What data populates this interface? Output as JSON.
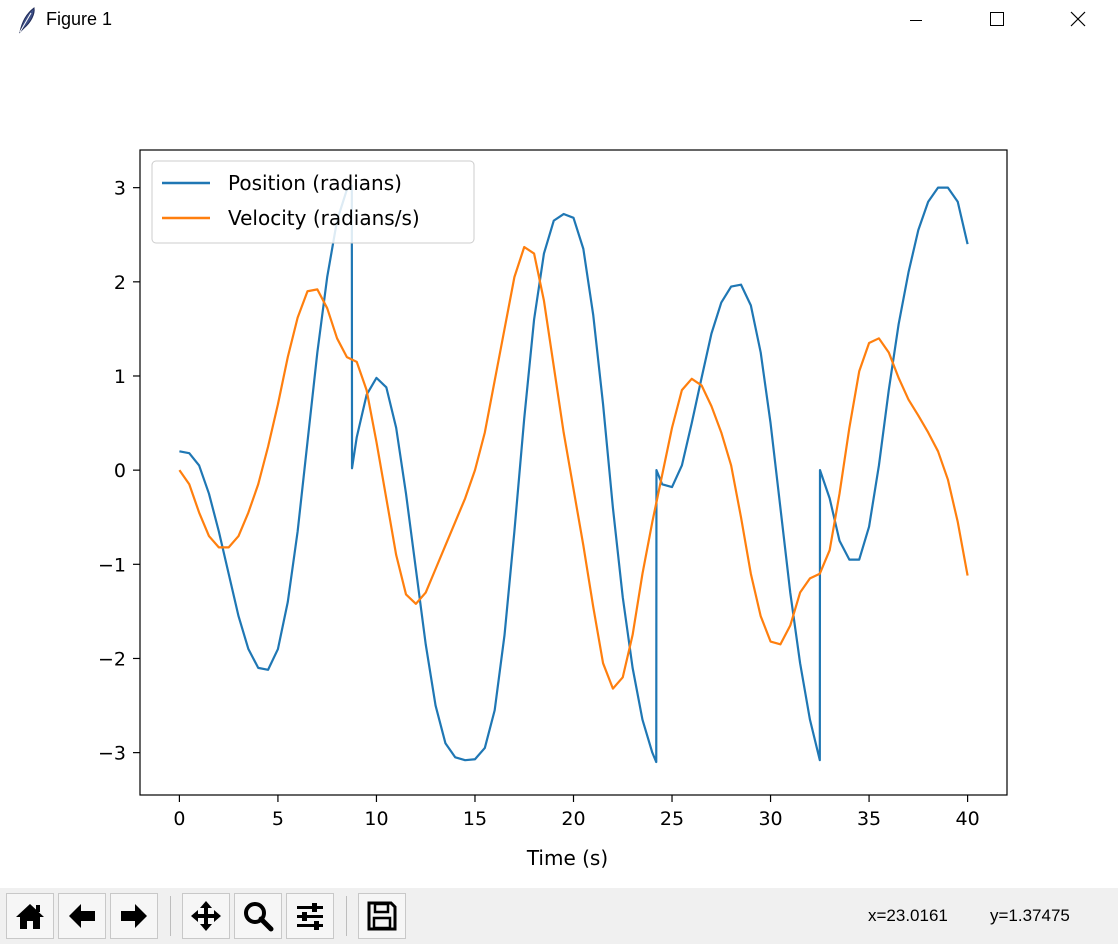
{
  "window": {
    "title": "Figure 1"
  },
  "toolbar": {
    "buttons": [
      "home-icon",
      "back-arrow-icon",
      "forward-arrow-icon",
      "pan-icon",
      "zoom-icon",
      "configure-subplots-icon",
      "save-icon"
    ],
    "coord_x": "x=23.0161",
    "coord_y": "y=1.37475"
  },
  "colors": {
    "position": "#1f77b4",
    "velocity": "#ff7f0e"
  },
  "chart_data": {
    "type": "line",
    "title": "",
    "xlabel": "Time (s)",
    "ylabel": "",
    "xlim": [
      -2,
      42
    ],
    "ylim": [
      -3.45,
      3.4
    ],
    "xticks": [
      0,
      5,
      10,
      15,
      20,
      25,
      30,
      35,
      40
    ],
    "xtick_labels": [
      "0",
      "5",
      "10",
      "15",
      "20",
      "25",
      "30",
      "35",
      "40"
    ],
    "yticks": [
      -3,
      -2,
      -1,
      0,
      1,
      2,
      3
    ],
    "ytick_labels": [
      "−3",
      "−2",
      "−1",
      "0",
      "1",
      "2",
      "3"
    ],
    "legend_position": "top-left",
    "series": [
      {
        "name": "Position (radians)",
        "x": [
          0,
          0.5,
          1,
          1.5,
          2,
          2.5,
          3,
          3.5,
          4,
          4.5,
          5,
          5.5,
          6,
          6.5,
          7,
          7.5,
          8,
          8.5,
          8.75,
          8.76,
          9,
          9.5,
          10,
          10.5,
          11,
          11.5,
          12,
          12.5,
          13,
          13.5,
          14,
          14.5,
          15,
          15.5,
          16,
          16.5,
          17,
          17.5,
          18,
          18.5,
          19,
          19.5,
          20,
          20.5,
          21,
          21.5,
          22,
          22.5,
          23,
          23.5,
          24,
          24.2,
          24.21,
          24.5,
          25,
          25.5,
          26,
          26.5,
          27,
          27.5,
          28,
          28.5,
          29,
          29.5,
          30,
          30.5,
          31,
          31.5,
          32,
          32.5,
          32.51,
          33,
          33.5,
          34,
          34.5,
          35,
          35.5,
          36,
          36.5,
          37,
          37.5,
          38,
          38.5,
          39,
          39.5,
          40
        ],
        "values": [
          0.2,
          0.18,
          0.05,
          -0.25,
          -0.65,
          -1.1,
          -1.55,
          -1.9,
          -2.1,
          -2.12,
          -1.9,
          -1.4,
          -0.65,
          0.3,
          1.25,
          2.05,
          2.65,
          2.98,
          3.02,
          0.02,
          0.35,
          0.8,
          0.98,
          0.88,
          0.45,
          -0.25,
          -1.05,
          -1.85,
          -2.5,
          -2.9,
          -3.05,
          -3.08,
          -3.07,
          -2.95,
          -2.55,
          -1.75,
          -0.65,
          0.55,
          1.6,
          2.3,
          2.65,
          2.72,
          2.68,
          2.35,
          1.65,
          0.7,
          -0.4,
          -1.35,
          -2.1,
          -2.65,
          -3.0,
          -3.1,
          0.0,
          -0.15,
          -0.18,
          0.05,
          0.5,
          0.98,
          1.45,
          1.78,
          1.95,
          1.97,
          1.75,
          1.25,
          0.5,
          -0.4,
          -1.3,
          -2.05,
          -2.65,
          -3.08,
          0.0,
          -0.3,
          -0.75,
          -0.95,
          -0.95,
          -0.6,
          0.05,
          0.85,
          1.55,
          2.1,
          2.55,
          2.85,
          3.0,
          3.0,
          2.85,
          2.4
        ]
      },
      {
        "name": "Velocity (radians/s)",
        "x": [
          0,
          0.5,
          1,
          1.5,
          2,
          2.5,
          3,
          3.5,
          4,
          4.5,
          5,
          5.5,
          6,
          6.5,
          7,
          7.5,
          8,
          8.5,
          9,
          9.5,
          10,
          10.5,
          11,
          11.5,
          12,
          12.5,
          13,
          13.5,
          14,
          14.5,
          15,
          15.5,
          16,
          16.5,
          17,
          17.5,
          18,
          18.5,
          19,
          19.5,
          20,
          20.5,
          21,
          21.5,
          22,
          22.5,
          23,
          23.5,
          24,
          24.5,
          25,
          25.5,
          26,
          26.5,
          27,
          27.5,
          28,
          28.5,
          29,
          29.5,
          30,
          30.5,
          31,
          31.5,
          32,
          32.5,
          33,
          33.5,
          34,
          34.5,
          35,
          35.5,
          36,
          36.5,
          37,
          37.5,
          38,
          38.5,
          39,
          39.5,
          40
        ],
        "values": [
          0.0,
          -0.15,
          -0.45,
          -0.7,
          -0.82,
          -0.82,
          -0.7,
          -0.45,
          -0.15,
          0.25,
          0.7,
          1.2,
          1.62,
          1.9,
          1.92,
          1.72,
          1.4,
          1.2,
          1.15,
          0.85,
          0.3,
          -0.3,
          -0.9,
          -1.32,
          -1.42,
          -1.3,
          -1.05,
          -0.8,
          -0.55,
          -0.3,
          0.0,
          0.4,
          0.95,
          1.5,
          2.05,
          2.37,
          2.3,
          1.8,
          1.1,
          0.4,
          -0.2,
          -0.8,
          -1.45,
          -2.05,
          -2.32,
          -2.2,
          -1.75,
          -1.1,
          -0.55,
          -0.05,
          0.45,
          0.85,
          0.97,
          0.9,
          0.68,
          0.4,
          0.05,
          -0.5,
          -1.1,
          -1.55,
          -1.82,
          -1.85,
          -1.65,
          -1.3,
          -1.15,
          -1.1,
          -0.85,
          -0.25,
          0.45,
          1.05,
          1.35,
          1.4,
          1.25,
          0.98,
          0.75,
          0.58,
          0.4,
          0.2,
          -0.1,
          -0.55,
          -1.12
        ]
      }
    ]
  }
}
